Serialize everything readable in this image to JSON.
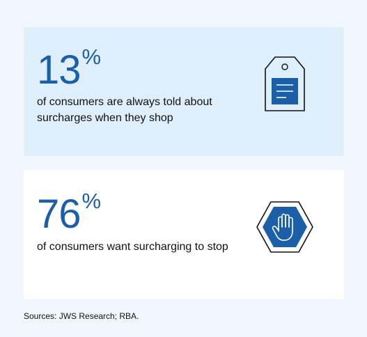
{
  "stats": [
    {
      "value": "13",
      "unit": "%",
      "description": "of consumers are always told about surcharges when they shop",
      "icon": "price-tag-icon"
    },
    {
      "value": "76",
      "unit": "%",
      "description": "of consumers want surcharging to stop",
      "icon": "stop-hand-icon"
    }
  ],
  "source": "Sources: JWS Research; RBA.",
  "colors": {
    "accent": "#1b5fa8",
    "card1_bg": "#deeefb",
    "card2_bg": "#ffffff",
    "page_bg": "#f1f5fd"
  }
}
